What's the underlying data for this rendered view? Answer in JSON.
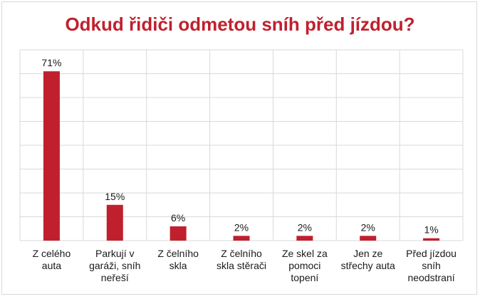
{
  "chart_data": {
    "type": "bar",
    "title": "Odkud řidiči odmetou sníh před jízdou?",
    "categories": [
      [
        "Z celého",
        "auta"
      ],
      [
        "Parkují v",
        "garáži, sníh",
        "neřeší"
      ],
      [
        "Z čelního",
        "skla"
      ],
      [
        "Z čelního",
        "skla stěrači"
      ],
      [
        "Ze skel za",
        "pomoci",
        "topení"
      ],
      [
        "Jen ze",
        "střechy auta"
      ],
      [
        "Před jízdou",
        "sníh",
        "neodstraní"
      ]
    ],
    "values": [
      71,
      15,
      6,
      2,
      2,
      2,
      1
    ],
    "data_labels": [
      "71%",
      "15%",
      "6%",
      "2%",
      "2%",
      "2%",
      "1%"
    ],
    "ylim": [
      0,
      80
    ],
    "grid": true,
    "bar_color": "#c0202e",
    "grid_color": "#d9d9d9"
  }
}
